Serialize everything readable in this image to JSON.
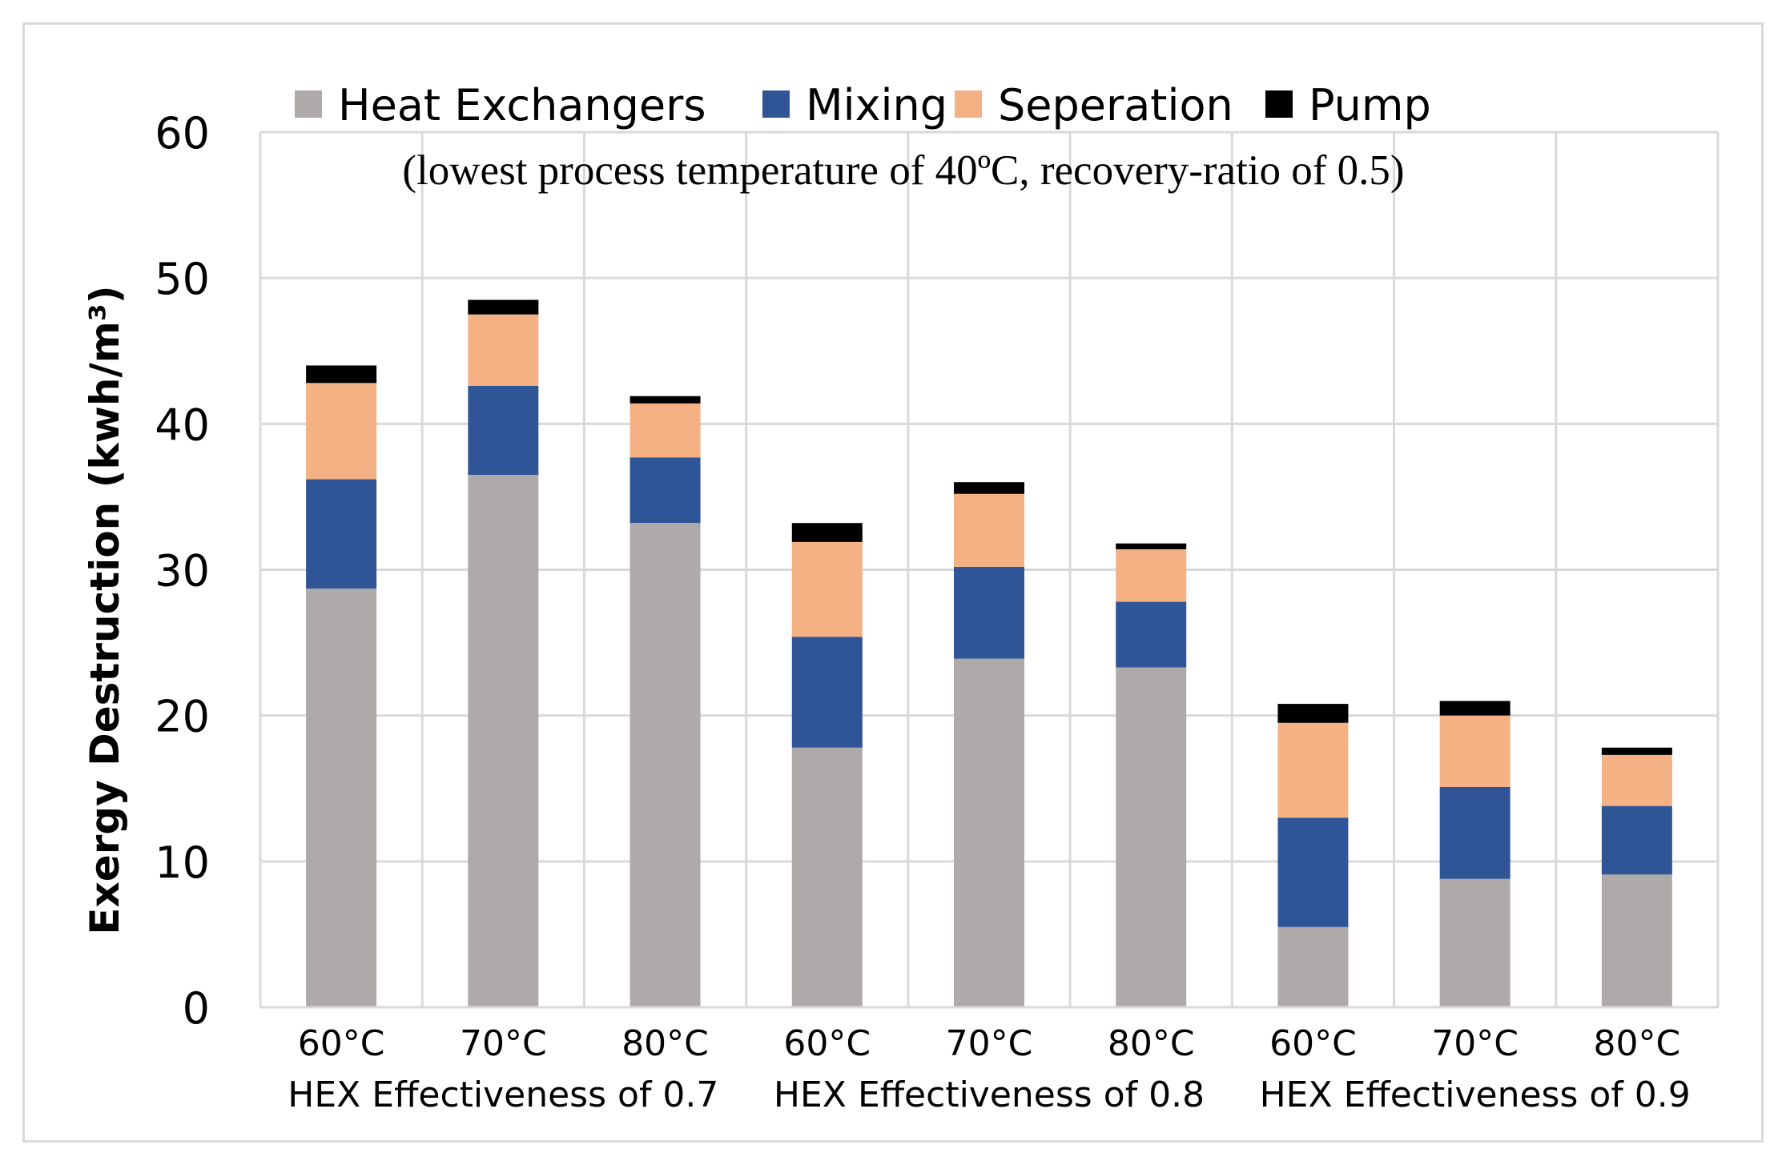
{
  "chart_data": {
    "type": "bar",
    "stacked": true,
    "subtitle": "(lowest process temperature of 40ºC, recovery-ratio of 0.5)",
    "ylabel": "Exergy Destruction (kwh/m³)",
    "ylim": [
      0,
      60
    ],
    "yticks": [
      "0",
      "10",
      "20",
      "30",
      "40",
      "50",
      "60"
    ],
    "grid": true,
    "legend_position": "top",
    "categories": [
      "60°C",
      "70°C",
      "80°C",
      "60°C",
      "70°C",
      "80°C",
      "60°C",
      "70°C",
      "80°C"
    ],
    "groups": [
      {
        "label": "HEX Effectiveness of 0.7",
        "start": 0,
        "count": 3
      },
      {
        "label": "HEX Effectiveness of 0.8",
        "start": 3,
        "count": 3
      },
      {
        "label": "HEX Effectiveness of 0.9",
        "start": 6,
        "count": 3
      }
    ],
    "series": [
      {
        "name": "Heat Exchangers",
        "color": "#aeaaaa",
        "values": [
          28.7,
          36.5,
          33.2,
          17.8,
          23.9,
          23.3,
          5.5,
          8.8,
          9.1
        ]
      },
      {
        "name": "Mixing",
        "color": "#2f5597",
        "values": [
          7.5,
          6.1,
          4.5,
          7.6,
          6.3,
          4.5,
          7.5,
          6.3,
          4.7
        ]
      },
      {
        "name": "Seperation",
        "color": "#f4b183",
        "values": [
          6.6,
          4.9,
          3.7,
          6.5,
          5.0,
          3.6,
          6.5,
          4.9,
          3.5
        ]
      },
      {
        "name": "Pump",
        "color": "#000000",
        "values": [
          1.2,
          1.0,
          0.5,
          1.3,
          0.8,
          0.4,
          1.3,
          1.0,
          0.5
        ]
      }
    ]
  }
}
